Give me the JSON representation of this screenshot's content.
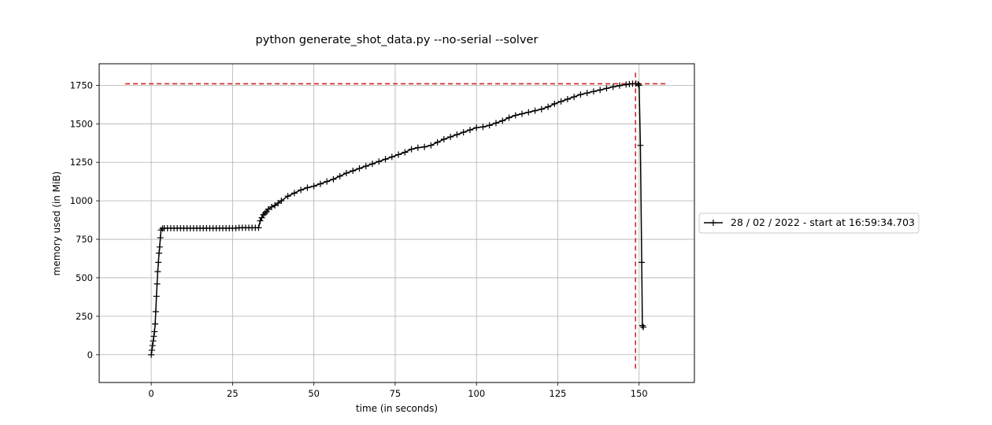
{
  "chart_data": {
    "type": "line",
    "title": "python generate_shot_data.py --no-serial --solver",
    "xlabel": "time (in seconds)",
    "ylabel": "memory used (in MiB)",
    "xlim": [
      -16,
      167
    ],
    "ylim": [
      -180,
      1890
    ],
    "xticks": [
      0,
      25,
      50,
      75,
      100,
      125,
      150
    ],
    "yticks": [
      0,
      250,
      500,
      750,
      1000,
      1250,
      1500,
      1750
    ],
    "grid": true,
    "legend_position": "outside-right",
    "series": [
      {
        "name": "28 / 02 / 2022 - start at 16:59:34.703",
        "color": "#000000",
        "marker": "+",
        "x": [
          0,
          0.2,
          0.4,
          0.6,
          0.8,
          1,
          1.2,
          1.4,
          1.6,
          1.8,
          2,
          2.2,
          2.4,
          2.6,
          2.8,
          3,
          3.5,
          4,
          5,
          6,
          7,
          8,
          9,
          10,
          11,
          12,
          13,
          14,
          15,
          16,
          17,
          18,
          19,
          20,
          21,
          22,
          23,
          24,
          25,
          26,
          27,
          28,
          29,
          30,
          31,
          32,
          33,
          33.5,
          34,
          34.5,
          35,
          35.5,
          36,
          37,
          38,
          39,
          40,
          42,
          44,
          46,
          48,
          50,
          52,
          54,
          56,
          58,
          60,
          62,
          64,
          66,
          68,
          70,
          72,
          74,
          76,
          78,
          80,
          82,
          84,
          86,
          88,
          90,
          92,
          94,
          96,
          98,
          100,
          102,
          104,
          106,
          108,
          110,
          112,
          114,
          116,
          118,
          120,
          122,
          124,
          126,
          128,
          130,
          132,
          134,
          136,
          138,
          140,
          142,
          144,
          146,
          147,
          148,
          149,
          149.7,
          150,
          150.4,
          150.8,
          151,
          151.3
        ],
        "y": [
          0,
          30,
          60,
          90,
          120,
          150,
          200,
          280,
          380,
          460,
          540,
          600,
          660,
          700,
          760,
          810,
          820,
          822,
          822,
          822,
          822,
          822,
          822,
          822,
          822,
          822,
          822,
          822,
          822,
          822,
          822,
          822,
          822,
          822,
          822,
          822,
          822,
          822,
          822,
          822,
          825,
          825,
          825,
          825,
          825,
          825,
          825,
          870,
          890,
          910,
          920,
          930,
          945,
          960,
          970,
          985,
          1000,
          1030,
          1050,
          1070,
          1085,
          1095,
          1110,
          1125,
          1140,
          1160,
          1180,
          1195,
          1210,
          1225,
          1240,
          1255,
          1270,
          1285,
          1300,
          1315,
          1335,
          1345,
          1350,
          1360,
          1380,
          1400,
          1415,
          1430,
          1445,
          1460,
          1475,
          1480,
          1490,
          1505,
          1520,
          1540,
          1555,
          1565,
          1575,
          1585,
          1595,
          1610,
          1630,
          1645,
          1660,
          1675,
          1690,
          1700,
          1710,
          1720,
          1730,
          1740,
          1748,
          1755,
          1758,
          1760,
          1760,
          1758,
          1750,
          1360,
          600,
          190,
          180
        ]
      }
    ],
    "reference_lines": [
      {
        "orientation": "horizontal",
        "value": 1760,
        "from": -8,
        "to": 159,
        "color": "#d62728",
        "style": "dashed"
      },
      {
        "orientation": "vertical",
        "value": 148.9,
        "from": -90,
        "to": 1845,
        "color": "#d62728",
        "style": "dashed"
      }
    ]
  }
}
